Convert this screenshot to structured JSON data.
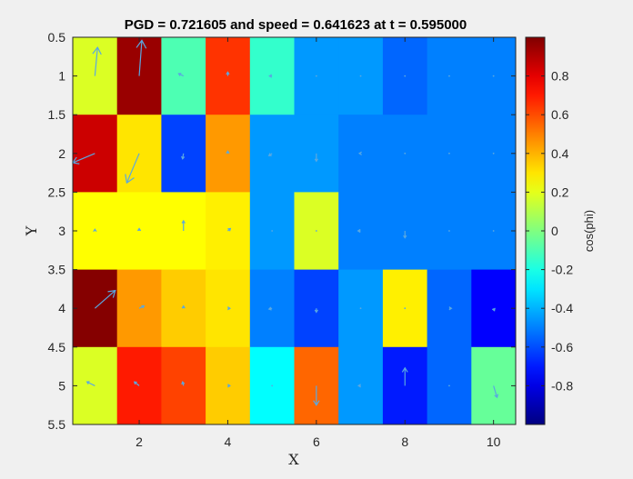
{
  "chart_data": {
    "type": "heatmap",
    "title": "PGD = 0.721605 and speed = 0.641623 at t = 0.595000",
    "xlabel": "X",
    "ylabel": "Y",
    "xlim": [
      0.5,
      10.5
    ],
    "ylim": [
      0.5,
      5.5
    ],
    "y_reversed": true,
    "x_ticks": [
      2,
      4,
      6,
      8,
      10
    ],
    "x_tick_labels": [
      "2",
      "4",
      "6",
      "8",
      "10"
    ],
    "y_ticks": [
      0.5,
      1,
      1.5,
      2,
      2.5,
      3,
      3.5,
      4,
      4.5,
      5,
      5.5
    ],
    "y_tick_labels": [
      "0.5",
      "1",
      "1.5",
      "2",
      "2.5",
      "3",
      "3.5",
      "4",
      "4.5",
      "5",
      "5.5"
    ],
    "x": [
      1,
      2,
      3,
      4,
      5,
      6,
      7,
      8,
      9,
      10
    ],
    "y": [
      1,
      2,
      3,
      4,
      5
    ],
    "values": [
      [
        0.18,
        0.95,
        -0.1,
        0.65,
        -0.15,
        -0.45,
        -0.45,
        -0.55,
        -0.5,
        -0.5
      ],
      [
        0.85,
        0.3,
        -0.62,
        0.45,
        -0.45,
        -0.45,
        -0.5,
        -0.5,
        -0.5,
        -0.5
      ],
      [
        0.25,
        0.25,
        0.25,
        0.28,
        -0.45,
        0.18,
        -0.5,
        -0.5,
        -0.5,
        -0.5
      ],
      [
        0.99,
        0.45,
        0.35,
        0.3,
        -0.5,
        -0.62,
        -0.45,
        0.28,
        -0.55,
        -0.75
      ],
      [
        0.18,
        0.7,
        0.62,
        0.35,
        -0.25,
        0.55,
        -0.45,
        -0.7,
        -0.55,
        -0.05
      ]
    ],
    "quiver": {
      "u": [
        [
          0.06,
          0.06,
          -0.11,
          0.0,
          -0.06,
          -0.02,
          0.0,
          -0.01,
          -0.01,
          -0.01
        ],
        [
          -0.5,
          -0.28,
          -0.02,
          0.0,
          -0.07,
          0.0,
          -0.03,
          -0.01,
          -0.01,
          -0.02
        ],
        [
          0.0,
          0.0,
          0.0,
          0.06,
          0.0,
          0.0,
          -0.06,
          0.0,
          0.0,
          0.0
        ],
        [
          0.46,
          0.11,
          0.0,
          0.05,
          -0.07,
          0.0,
          -0.02,
          -0.01,
          0.05,
          0.02
        ],
        [
          -0.18,
          -0.11,
          -0.02,
          0.05,
          0.0,
          0.0,
          -0.05,
          0.0,
          0.0,
          0.08
        ]
      ],
      "v": [
        [
          -0.37,
          -0.46,
          -0.03,
          -0.05,
          0.0,
          0.0,
          0.0,
          0.0,
          0.0,
          0.0
        ],
        [
          0.12,
          0.38,
          0.07,
          -0.03,
          0.03,
          0.1,
          0.0,
          0.0,
          0.0,
          0.0
        ],
        [
          -0.02,
          -0.03,
          -0.13,
          -0.03,
          0.0,
          0.0,
          0.0,
          0.09,
          0.0,
          0.0
        ],
        [
          -0.23,
          -0.03,
          -0.03,
          0.0,
          0.01,
          0.05,
          0.0,
          0.0,
          0.0,
          0.03
        ],
        [
          -0.05,
          -0.05,
          -0.05,
          0.0,
          0.0,
          0.25,
          0.0,
          -0.23,
          0.0,
          0.15
        ]
      ],
      "color": "#5aa8e0"
    },
    "colorbar": {
      "label": "cos(phi)",
      "limits": [
        -1,
        1
      ],
      "ticks": [
        0.8,
        0.6,
        0.4,
        0.2,
        0,
        -0.2,
        -0.4,
        -0.6,
        -0.8
      ],
      "tick_labels": [
        "0.8",
        "0.6",
        "0.4",
        "0.2",
        "0",
        "-0.2",
        "-0.4",
        "-0.6",
        "-0.8"
      ],
      "colormap": "jet"
    },
    "grid": false
  }
}
